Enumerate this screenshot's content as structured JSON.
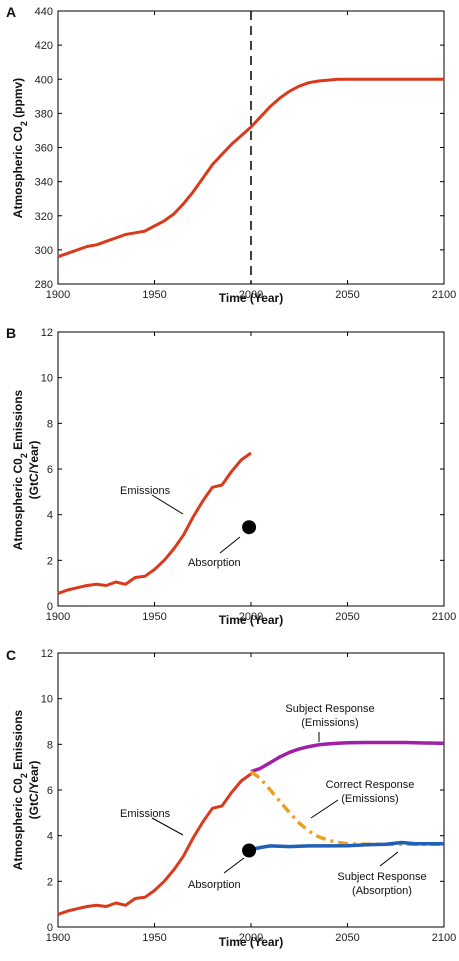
{
  "chart_data": [
    {
      "panel": "A",
      "type": "line",
      "xlabel": "Time (Year)",
      "ylabel_main": "Atmospheric C0",
      "ylabel_sub": "2",
      "ylabel_tail": " (ppmv)",
      "xlim": [
        1900,
        2100
      ],
      "ylim": [
        280,
        440
      ],
      "xticks": [
        "1900",
        "1950",
        "2000",
        "2050",
        "2100"
      ],
      "yticks": [
        "280",
        "300",
        "320",
        "340",
        "360",
        "380",
        "400",
        "420",
        "440"
      ],
      "vline_x": 2000,
      "colors": {
        "series": "#d93a1c"
      },
      "series": [
        {
          "x": [
            1900,
            1905,
            1910,
            1915,
            1920,
            1925,
            1930,
            1935,
            1940,
            1945,
            1950,
            1955,
            1960,
            1965,
            1970,
            1975,
            1980,
            1985,
            1990,
            1995,
            2000,
            2005,
            2010,
            2015,
            2020,
            2025,
            2030,
            2035,
            2040,
            2045,
            2050,
            2060,
            2070,
            2080,
            2090,
            2100
          ],
          "y": [
            296,
            298,
            300,
            302,
            303,
            305,
            307,
            309,
            310,
            311,
            314,
            317,
            321,
            327,
            334,
            342,
            350,
            356,
            362,
            367,
            372,
            378,
            384,
            389,
            393,
            396,
            398,
            399,
            399.5,
            400,
            400,
            400,
            400,
            400,
            400,
            400
          ]
        }
      ]
    },
    {
      "panel": "B",
      "type": "line",
      "xlabel": "Time (Year)",
      "ylabel_main": "Atmospheric C0",
      "ylabel_sub": "2",
      "ylabel_tail": " Emissions",
      "ylabel_line2": "(GtC/Year)",
      "xlim": [
        1900,
        2100
      ],
      "ylim": [
        0,
        12
      ],
      "xticks": [
        "1900",
        "1950",
        "2000",
        "2050",
        "2100"
      ],
      "yticks": [
        "0",
        "2",
        "4",
        "6",
        "8",
        "10",
        "12"
      ],
      "colors": {
        "series": "#d93a1c",
        "point": "#000000"
      },
      "series": [
        {
          "x": [
            1900,
            1905,
            1910,
            1915,
            1920,
            1925,
            1930,
            1935,
            1940,
            1945,
            1950,
            1955,
            1960,
            1965,
            1970,
            1975,
            1980,
            1985,
            1990,
            1995,
            2000
          ],
          "y": [
            0.55,
            0.7,
            0.8,
            0.9,
            0.95,
            0.9,
            1.05,
            0.95,
            1.25,
            1.3,
            1.6,
            2.0,
            2.5,
            3.1,
            3.9,
            4.6,
            5.2,
            5.3,
            5.9,
            6.4,
            6.7
          ]
        }
      ],
      "point": {
        "x": 1999,
        "y": 3.45
      },
      "annotations": [
        {
          "text": "Emissions"
        },
        {
          "text": "Absorption"
        }
      ]
    },
    {
      "panel": "C",
      "type": "line",
      "xlabel": "Time (Year)",
      "ylabel_main": "Atmospheric C0",
      "ylabel_sub": "2",
      "ylabel_tail": " Emissions",
      "ylabel_line2": "(GtC/Year)",
      "xlim": [
        1900,
        2100
      ],
      "ylim": [
        0,
        12
      ],
      "xticks": [
        "1900",
        "1950",
        "2000",
        "2050",
        "2100"
      ],
      "yticks": [
        "0",
        "2",
        "4",
        "6",
        "8",
        "10",
        "12"
      ],
      "colors": {
        "emissions": "#d93a1c",
        "subject_emissions": "#a020a8",
        "correct": "#f0a020",
        "subject_absorption": "#1f5fb5",
        "point": "#000000"
      },
      "series": [
        {
          "key": "emissions",
          "x": [
            1900,
            1905,
            1910,
            1915,
            1920,
            1925,
            1930,
            1935,
            1940,
            1945,
            1950,
            1955,
            1960,
            1965,
            1970,
            1975,
            1980,
            1985,
            1990,
            1995,
            2000
          ],
          "y": [
            0.55,
            0.7,
            0.8,
            0.9,
            0.95,
            0.9,
            1.05,
            0.95,
            1.25,
            1.3,
            1.6,
            2.0,
            2.5,
            3.1,
            3.9,
            4.6,
            5.2,
            5.3,
            5.9,
            6.4,
            6.7
          ]
        },
        {
          "key": "subject_emissions",
          "x": [
            2000,
            2005,
            2010,
            2015,
            2020,
            2025,
            2030,
            2035,
            2040,
            2045,
            2050,
            2060,
            2070,
            2080,
            2090,
            2100
          ],
          "y": [
            6.8,
            6.95,
            7.2,
            7.45,
            7.65,
            7.8,
            7.9,
            7.98,
            8.02,
            8.05,
            8.07,
            8.08,
            8.08,
            8.08,
            8.06,
            8.05
          ]
        },
        {
          "key": "correct",
          "x": [
            2000,
            2005,
            2010,
            2015,
            2020,
            2025,
            2030,
            2035,
            2040,
            2045,
            2050,
            2055,
            2060,
            2070,
            2080,
            2090,
            2100
          ],
          "y": [
            6.8,
            6.5,
            6.0,
            5.5,
            5.0,
            4.55,
            4.2,
            3.95,
            3.8,
            3.7,
            3.65,
            3.63,
            3.62,
            3.62,
            3.62,
            3.62,
            3.62
          ]
        },
        {
          "key": "subject_absorption",
          "x": [
            2000,
            2005,
            2010,
            2020,
            2030,
            2040,
            2050,
            2060,
            2070,
            2078,
            2085,
            2090,
            2100
          ],
          "y": [
            3.4,
            3.48,
            3.55,
            3.52,
            3.55,
            3.55,
            3.56,
            3.6,
            3.62,
            3.7,
            3.65,
            3.65,
            3.65
          ]
        }
      ],
      "point": {
        "x": 1999,
        "y": 3.35
      },
      "annotations": [
        {
          "text": "Emissions"
        },
        {
          "text": "Absorption"
        },
        {
          "text": "Subject Response"
        },
        {
          "text": "(Emissions)"
        },
        {
          "text": "Correct Response"
        },
        {
          "text": "(Emissions)"
        },
        {
          "text": "Subject Response"
        },
        {
          "text": "(Absorption)"
        }
      ]
    }
  ]
}
